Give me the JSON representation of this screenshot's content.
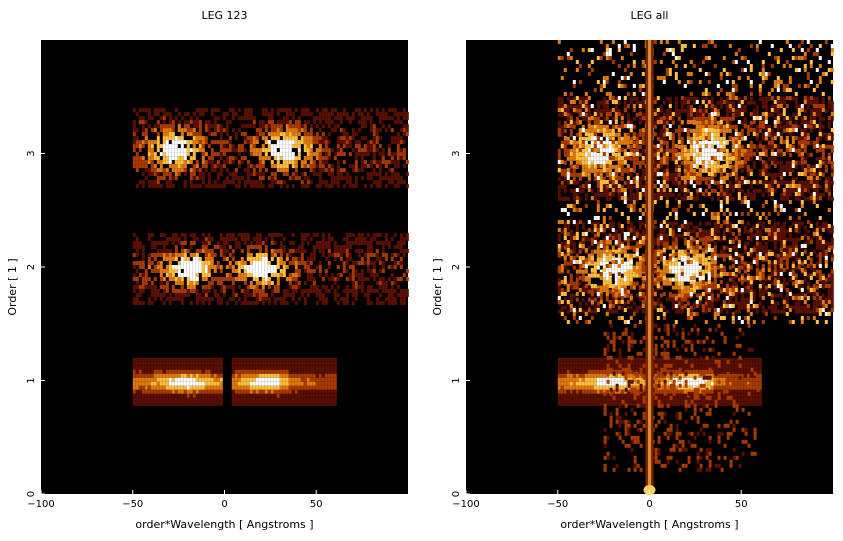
{
  "chart_data": [
    {
      "type": "heatmap",
      "title": "LEG 123",
      "xlabel": "order*Wavelength [ Angstroms ]",
      "ylabel": "Order [ 1 ]",
      "xlim": [
        -100,
        100
      ],
      "ylim": [
        0,
        4
      ],
      "xticks": [
        "−100",
        "−50",
        "0",
        "50"
      ],
      "xtick_values": [
        -100,
        -50,
        0,
        50
      ],
      "yticks": [
        "0",
        "1",
        "2",
        "3"
      ],
      "ytick_values": [
        0,
        1,
        2,
        3
      ],
      "colormap": [
        "#000000",
        "#5a0f00",
        "#a83a00",
        "#e07a10",
        "#ffc040",
        "#ffffff"
      ],
      "bands": [
        {
          "order": 1,
          "x_range": [
            -50,
            60
          ],
          "y_range": [
            0.8,
            1.2
          ],
          "peaks": [
            -22,
            22
          ],
          "gap_at": 0
        },
        {
          "order": 2,
          "x_range": [
            -50,
            100
          ],
          "y_range": [
            1.7,
            2.3
          ],
          "peaks": [
            -20,
            19
          ]
        },
        {
          "order": 3,
          "x_range": [
            -50,
            100
          ],
          "y_range": [
            2.7,
            3.4
          ],
          "peaks": [
            -28,
            32
          ]
        }
      ]
    },
    {
      "type": "heatmap",
      "title": "LEG all",
      "xlabel": "order*Wavelength [ Angstroms ]",
      "ylabel": "Order [ 1 ]",
      "xlim": [
        -100,
        100
      ],
      "ylim": [
        0,
        4
      ],
      "xticks": [
        "−100",
        "−50",
        "0",
        "50"
      ],
      "xtick_values": [
        -100,
        -50,
        0,
        50
      ],
      "yticks": [
        "0",
        "1",
        "2",
        "3"
      ],
      "ytick_values": [
        0,
        1,
        2,
        3
      ],
      "colormap": [
        "#000000",
        "#5a0f00",
        "#a83a00",
        "#e07a10",
        "#ffc040",
        "#ffffff"
      ],
      "bands": [
        {
          "order": 1,
          "x_range": [
            -50,
            60
          ],
          "y_range": [
            0.8,
            1.2
          ],
          "peaks": [
            -22,
            22
          ],
          "zero_order_streak": true
        },
        {
          "order": 2,
          "x_range": [
            -50,
            100
          ],
          "y_range": [
            1.6,
            2.4
          ],
          "peaks": [
            -20,
            19
          ]
        },
        {
          "order": 3,
          "x_range": [
            -50,
            100
          ],
          "y_range": [
            2.6,
            3.5
          ],
          "peaks": [
            -28,
            32
          ]
        }
      ]
    }
  ]
}
